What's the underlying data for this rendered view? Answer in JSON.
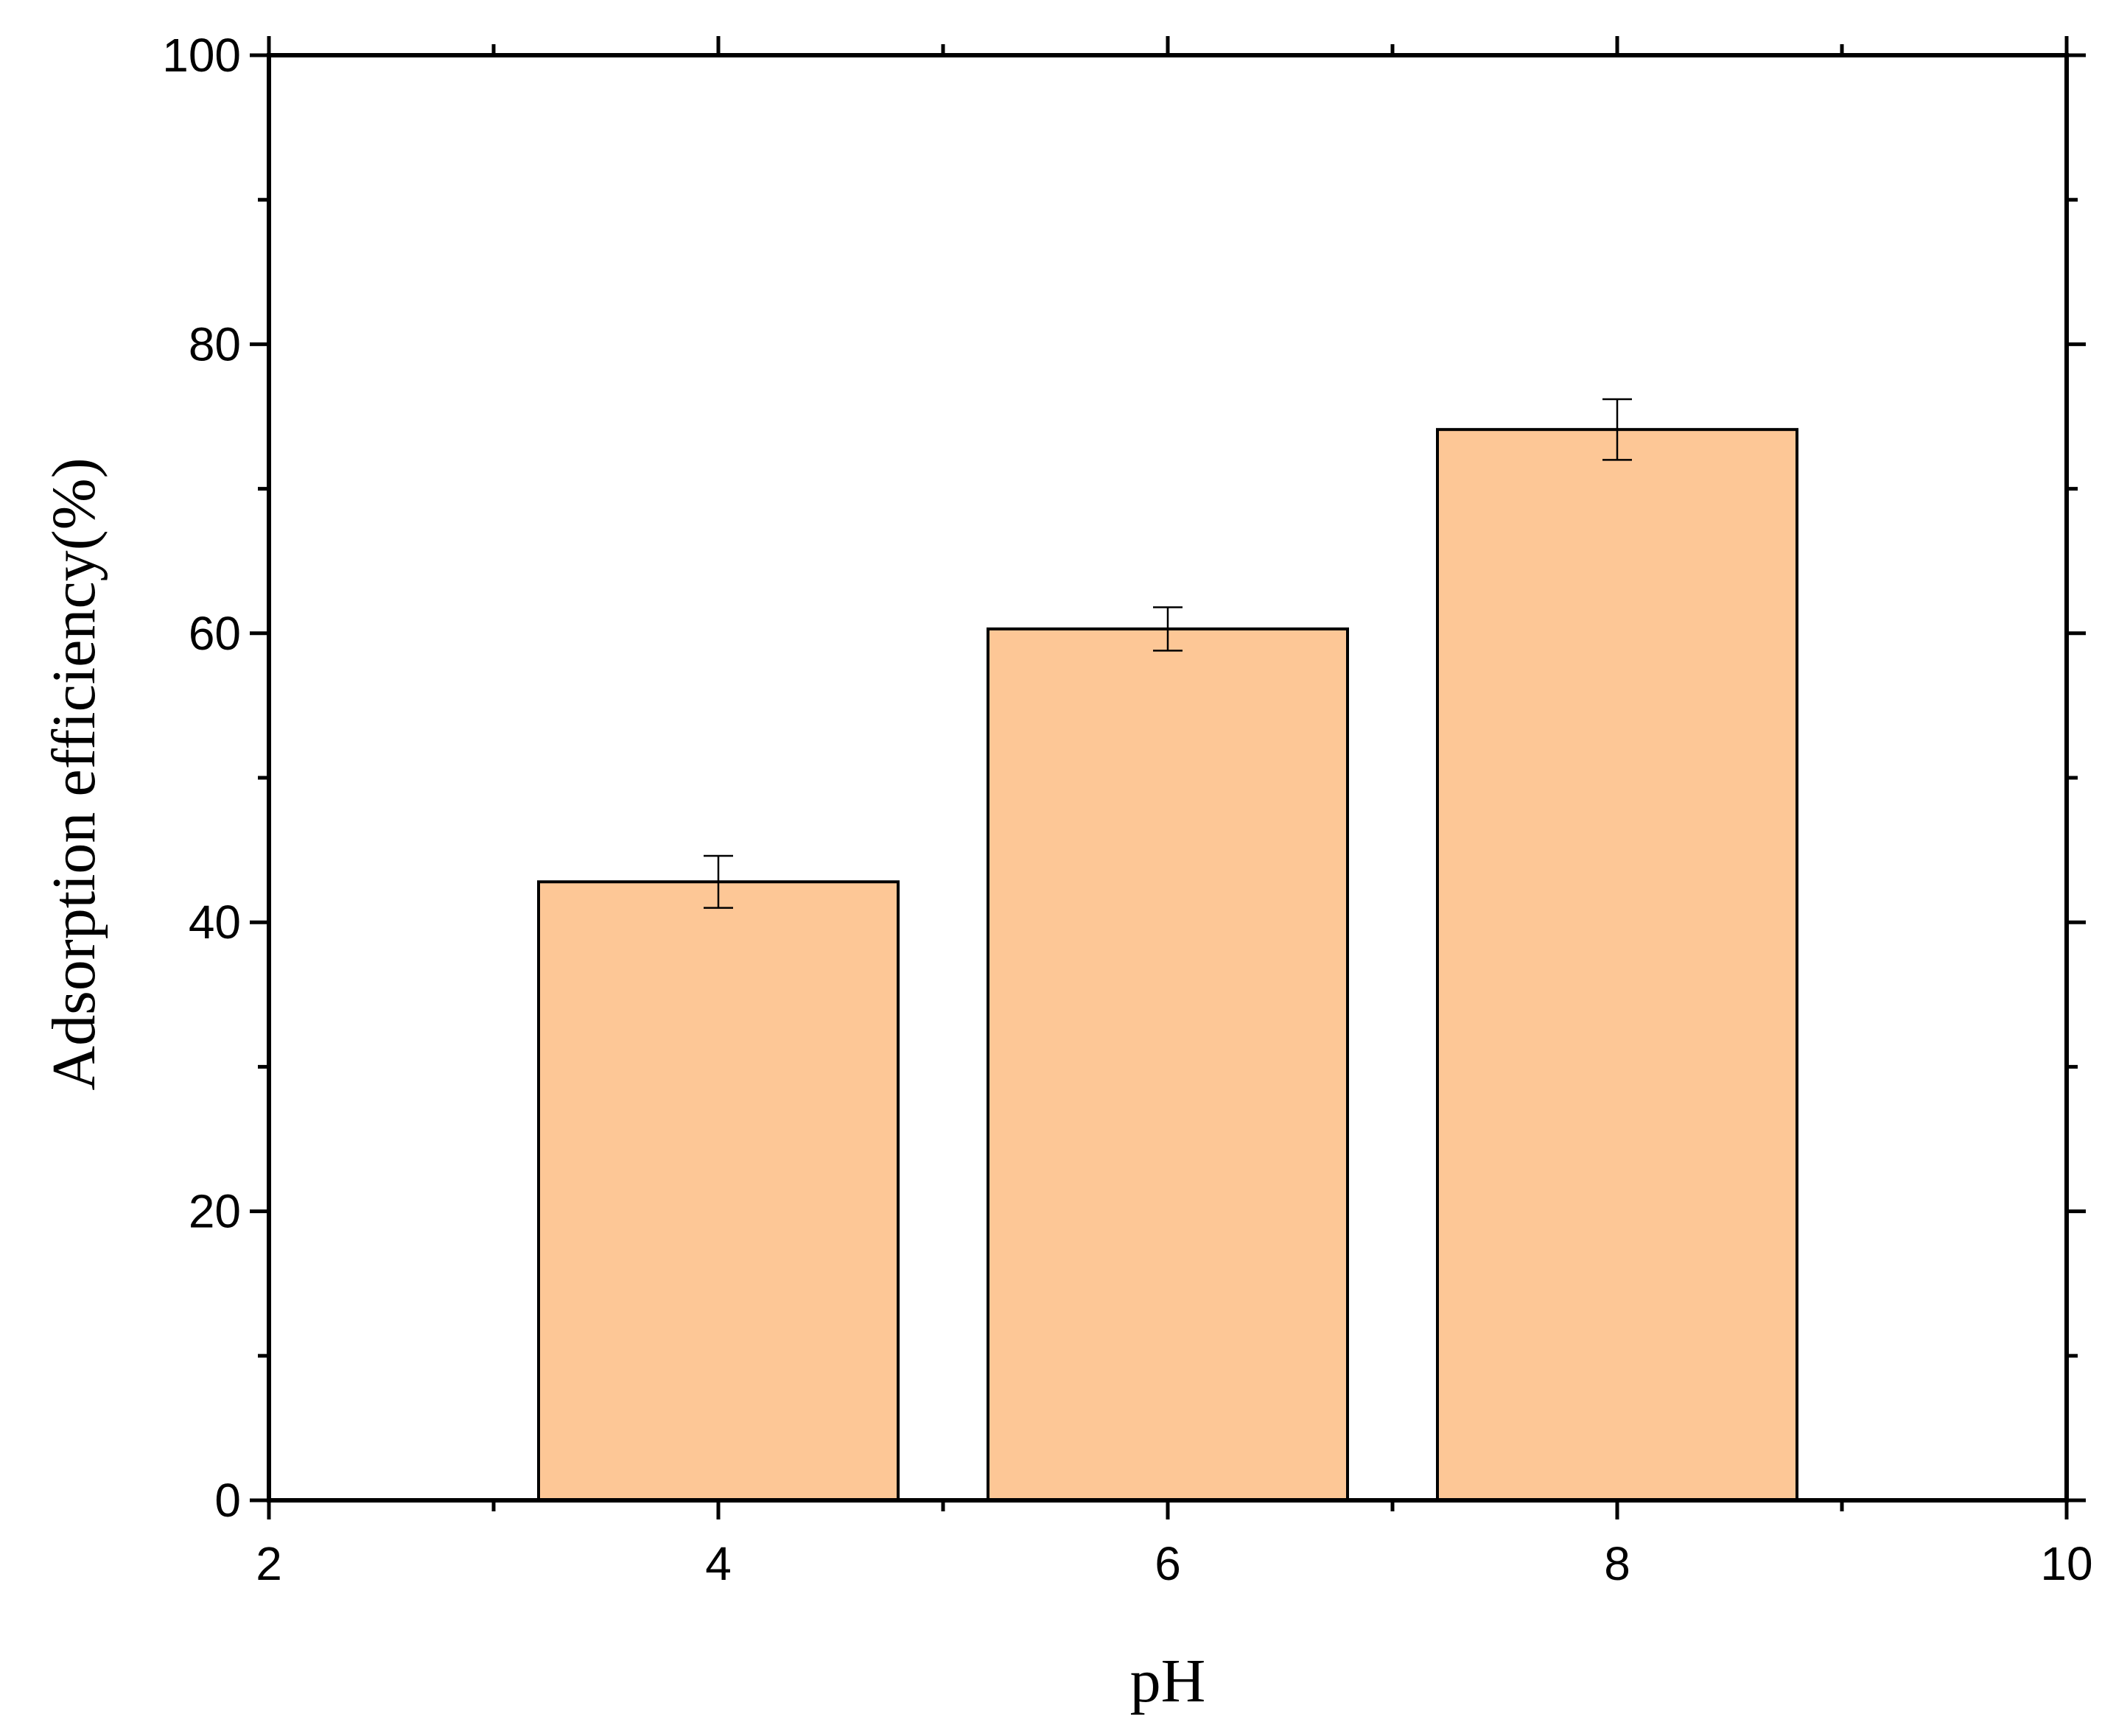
{
  "chart_data": {
    "type": "bar",
    "xlabel": "pH",
    "ylabel": "Adsorption efficiency(%)",
    "xlim": [
      2,
      10
    ],
    "ylim": [
      0,
      100
    ],
    "x_ticks": [
      2,
      4,
      6,
      8,
      10
    ],
    "y_ticks": [
      0,
      20,
      40,
      60,
      80,
      100
    ],
    "x_minor_ticks": [
      3,
      5,
      7,
      9
    ],
    "y_minor_ticks": [
      10,
      30,
      50,
      70,
      90
    ],
    "bar_width": 1.6,
    "bar_color": "#FDC796",
    "points": [
      {
        "x": 4,
        "y": 42.8,
        "err": 1.8
      },
      {
        "x": 6,
        "y": 60.3,
        "err": 1.5
      },
      {
        "x": 8,
        "y": 74.1,
        "err": 2.1
      }
    ],
    "grid": false,
    "legend": "none"
  }
}
